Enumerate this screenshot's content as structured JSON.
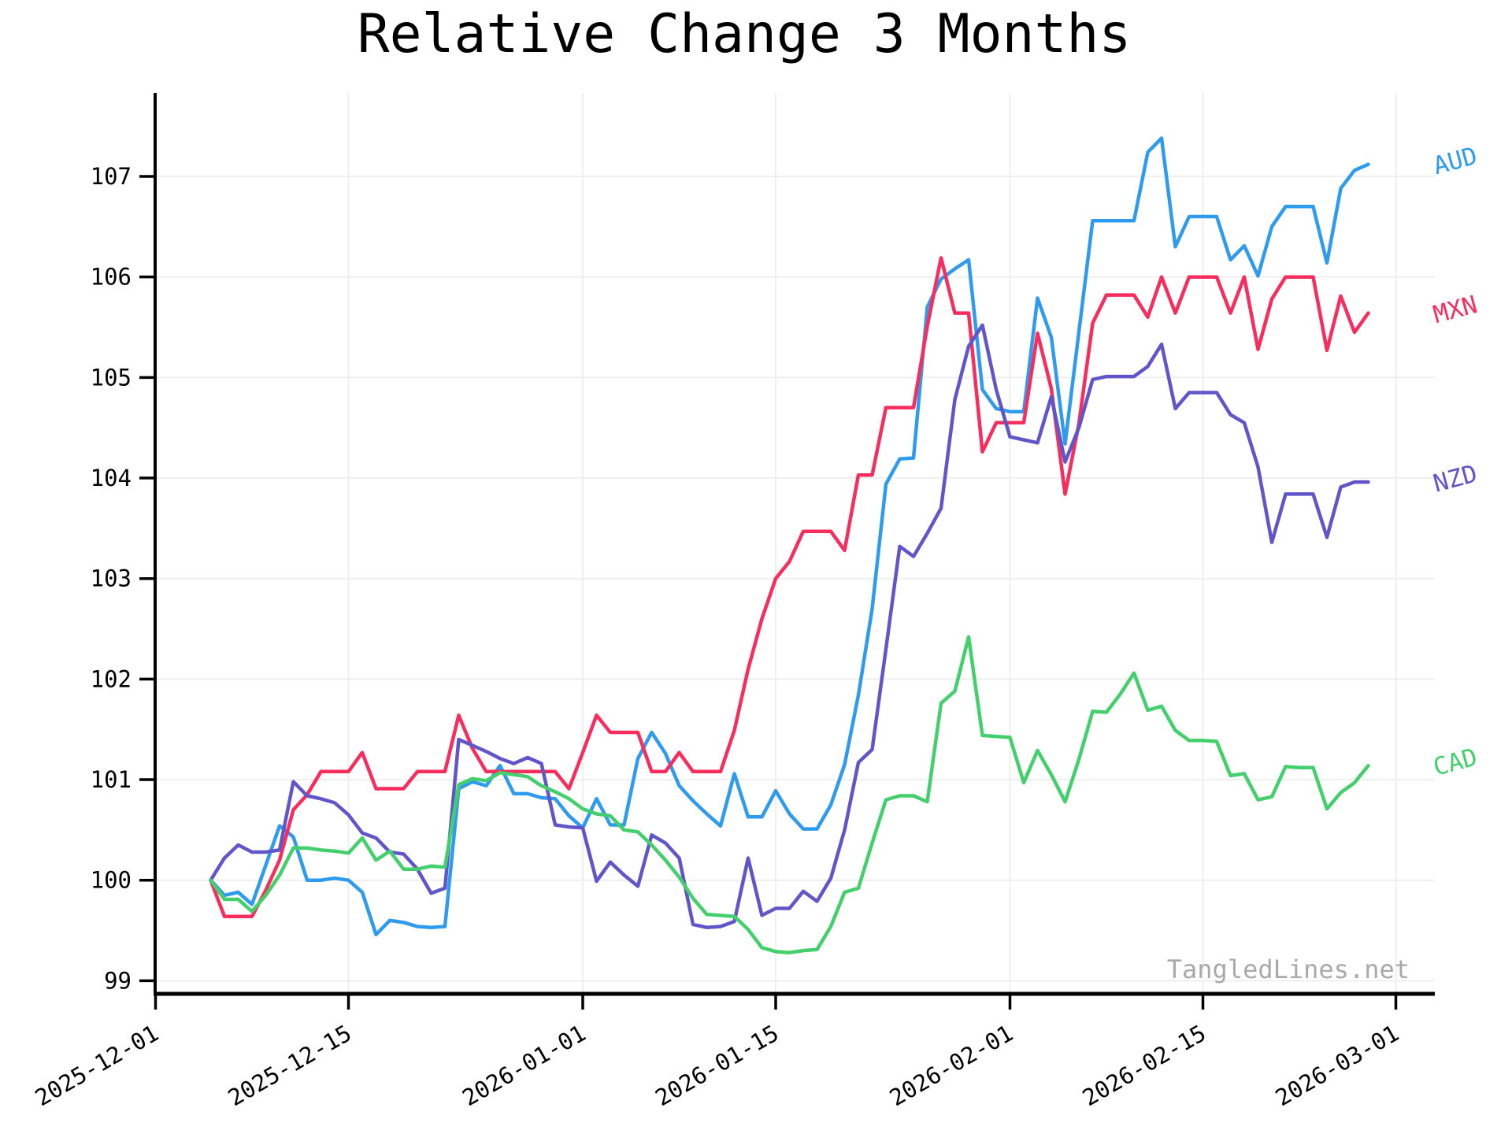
{
  "chart_data": {
    "type": "line",
    "title": "Relative Change 3 Months",
    "watermark": "TangledLines.net",
    "x_unit": "date",
    "x_start": "2025-12-05",
    "x_end": "2026-02-27",
    "x_tick_labels": [
      "2025-12-01",
      "2025-12-15",
      "2026-01-01",
      "2026-01-15",
      "2026-02-01",
      "2026-02-15",
      "2026-03-01"
    ],
    "y_ticks": [
      99,
      100,
      101,
      102,
      103,
      104,
      105,
      106,
      107
    ],
    "ylim": [
      98.87,
      107.83
    ],
    "grid": true,
    "legend_position": "line-end-labels-right",
    "axis_color": "#000000",
    "grid_color": "#efefef",
    "watermark_color": "#a9a9a9",
    "series": [
      {
        "name": "AUD",
        "color": "#2F9BEF",
        "values": [
          100.0,
          99.85,
          99.88,
          99.76,
          100.15,
          100.54,
          100.43,
          100.0,
          100.0,
          100.02,
          100.0,
          99.88,
          99.46,
          99.6,
          99.58,
          99.54,
          99.53,
          99.54,
          100.91,
          100.98,
          100.94,
          101.14,
          100.86,
          100.86,
          100.82,
          100.81,
          100.64,
          100.52,
          100.81,
          100.55,
          100.55,
          101.21,
          101.47,
          101.26,
          100.94,
          100.79,
          100.66,
          100.54,
          101.06,
          100.63,
          100.63,
          100.89,
          100.66,
          100.51,
          100.51,
          100.75,
          101.15,
          101.84,
          102.7,
          103.94,
          104.19,
          104.2,
          105.7,
          105.98,
          106.08,
          106.17,
          104.88,
          104.69,
          104.66,
          104.66,
          105.79,
          105.4,
          104.34,
          105.45,
          106.56,
          106.56,
          106.56,
          106.56,
          107.24,
          107.38,
          106.3,
          106.6,
          106.6,
          106.6,
          106.17,
          106.31,
          106.01,
          106.5,
          106.7,
          106.7,
          106.7,
          106.14,
          106.88,
          107.06,
          107.12
        ]
      },
      {
        "name": "MXN",
        "color": "#F62D5D",
        "values": [
          100.0,
          99.64,
          99.64,
          99.64,
          99.9,
          100.2,
          100.7,
          100.85,
          101.08,
          101.08,
          101.08,
          101.27,
          100.91,
          100.91,
          100.91,
          101.08,
          101.08,
          101.08,
          101.64,
          101.31,
          101.08,
          101.08,
          101.08,
          101.08,
          101.08,
          101.08,
          100.91,
          101.27,
          101.64,
          101.47,
          101.47,
          101.47,
          101.08,
          101.08,
          101.27,
          101.08,
          101.08,
          101.08,
          101.49,
          102.1,
          102.6,
          103.0,
          103.17,
          103.47,
          103.47,
          103.47,
          103.28,
          104.03,
          104.03,
          104.7,
          104.7,
          104.7,
          105.51,
          106.19,
          105.64,
          105.64,
          104.26,
          104.55,
          104.55,
          104.55,
          105.44,
          104.89,
          103.84,
          104.54,
          105.54,
          105.82,
          105.82,
          105.82,
          105.6,
          106.0,
          105.64,
          106.0,
          106.0,
          106.0,
          105.64,
          106.0,
          105.28,
          105.78,
          106.0,
          106.0,
          106.0,
          105.27,
          105.81,
          105.45,
          105.64
        ]
      },
      {
        "name": "NZD",
        "color": "#6056C9",
        "values": [
          100.0,
          100.22,
          100.35,
          100.28,
          100.28,
          100.3,
          100.98,
          100.84,
          100.81,
          100.77,
          100.65,
          100.47,
          100.42,
          100.28,
          100.26,
          100.11,
          99.87,
          99.92,
          101.4,
          101.34,
          101.28,
          101.21,
          101.16,
          101.22,
          101.16,
          100.55,
          100.53,
          100.52,
          99.99,
          100.18,
          100.05,
          99.94,
          100.45,
          100.37,
          100.22,
          99.56,
          99.53,
          99.54,
          99.59,
          100.22,
          99.65,
          99.72,
          99.72,
          99.89,
          99.79,
          100.02,
          100.5,
          101.17,
          101.3,
          102.3,
          103.32,
          103.22,
          103.45,
          103.7,
          104.78,
          105.31,
          105.52,
          104.88,
          104.41,
          104.38,
          104.35,
          104.81,
          104.16,
          104.5,
          104.98,
          105.01,
          105.01,
          105.01,
          105.11,
          105.33,
          104.69,
          104.85,
          104.85,
          104.85,
          104.63,
          104.55,
          104.11,
          103.36,
          103.84,
          103.84,
          103.84,
          103.41,
          103.91,
          103.96,
          103.96
        ]
      },
      {
        "name": "CAD",
        "color": "#43CF6C",
        "values": [
          100.0,
          99.81,
          99.81,
          99.69,
          99.85,
          100.05,
          100.32,
          100.32,
          100.3,
          100.29,
          100.27,
          100.42,
          100.2,
          100.29,
          100.11,
          100.11,
          100.14,
          100.13,
          100.95,
          101.01,
          100.99,
          101.07,
          101.05,
          101.03,
          100.94,
          100.88,
          100.81,
          100.71,
          100.66,
          100.64,
          100.5,
          100.48,
          100.35,
          100.2,
          100.03,
          99.82,
          99.66,
          99.65,
          99.64,
          99.51,
          99.33,
          99.29,
          99.28,
          99.3,
          99.31,
          99.54,
          99.88,
          99.92,
          100.37,
          100.8,
          100.84,
          100.84,
          100.78,
          101.76,
          101.88,
          102.42,
          101.44,
          101.43,
          101.42,
          100.97,
          101.29,
          101.05,
          100.78,
          101.2,
          101.68,
          101.67,
          101.85,
          102.06,
          101.69,
          101.73,
          101.49,
          101.39,
          101.39,
          101.38,
          101.04,
          101.06,
          100.8,
          100.83,
          101.13,
          101.12,
          101.12,
          100.71,
          100.87,
          100.97,
          101.14
        ]
      }
    ]
  }
}
